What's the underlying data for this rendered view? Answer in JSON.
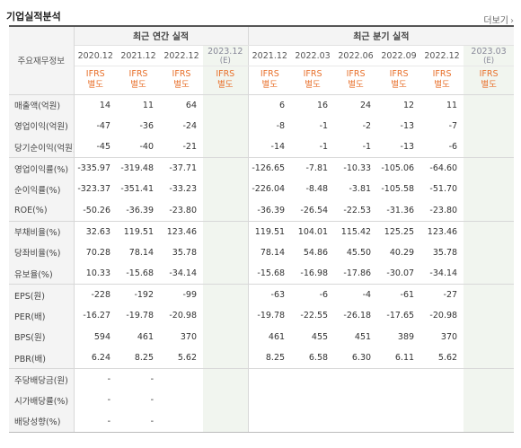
{
  "section": {
    "title": "기업실적분석",
    "more_label": "더보기"
  },
  "table": {
    "row_header_label": "주요재무정보",
    "group_annual": "최근 연간 실적",
    "group_quarter": "최근 분기 실적",
    "estimate_label": "(E)",
    "standard": [
      "IFRS",
      "별도"
    ],
    "annual_periods": [
      "2020.12",
      "2021.12",
      "2022.12",
      "2023.12"
    ],
    "quarter_periods": [
      "2021.12",
      "2022.03",
      "2022.06",
      "2022.09",
      "2022.12",
      "2023.03"
    ],
    "rows": [
      {
        "label": "매출액(억원)",
        "values": [
          "14",
          "11",
          "64",
          "",
          "6",
          "16",
          "24",
          "12",
          "11",
          ""
        ]
      },
      {
        "label": "영업이익(억원)",
        "values": [
          "-47",
          "-36",
          "-24",
          "",
          "-8",
          "-1",
          "-2",
          "-13",
          "-7",
          ""
        ]
      },
      {
        "label": "당기순이익(억원)",
        "values": [
          "-45",
          "-40",
          "-21",
          "",
          "-14",
          "-1",
          "-1",
          "-13",
          "-6",
          ""
        ]
      },
      {
        "label": "영업이익률(%)",
        "values": [
          "-335.97",
          "-319.48",
          "-37.71",
          "",
          "-126.65",
          "-7.81",
          "-10.33",
          "-105.06",
          "-64.60",
          ""
        ]
      },
      {
        "label": "순이익률(%)",
        "values": [
          "-323.37",
          "-351.41",
          "-33.23",
          "",
          "-226.04",
          "-8.48",
          "-3.81",
          "-105.58",
          "-51.70",
          ""
        ]
      },
      {
        "label": "ROE(%)",
        "values": [
          "-50.26",
          "-36.39",
          "-23.80",
          "",
          "-36.39",
          "-26.54",
          "-22.53",
          "-31.36",
          "-23.80",
          ""
        ]
      },
      {
        "label": "부채비율(%)",
        "values": [
          "32.63",
          "119.51",
          "123.46",
          "",
          "119.51",
          "104.01",
          "115.42",
          "125.25",
          "123.46",
          ""
        ]
      },
      {
        "label": "당좌비율(%)",
        "values": [
          "70.28",
          "78.14",
          "35.78",
          "",
          "78.14",
          "54.86",
          "45.50",
          "40.29",
          "35.78",
          ""
        ]
      },
      {
        "label": "유보율(%)",
        "values": [
          "10.33",
          "-15.68",
          "-34.14",
          "",
          "-15.68",
          "-16.98",
          "-17.86",
          "-30.07",
          "-34.14",
          ""
        ]
      },
      {
        "label": "EPS(원)",
        "values": [
          "-228",
          "-192",
          "-99",
          "",
          "-63",
          "-6",
          "-4",
          "-61",
          "-27",
          ""
        ]
      },
      {
        "label": "PER(배)",
        "values": [
          "-16.27",
          "-19.78",
          "-20.98",
          "",
          "-19.78",
          "-22.55",
          "-26.18",
          "-17.65",
          "-20.98",
          ""
        ]
      },
      {
        "label": "BPS(원)",
        "values": [
          "594",
          "461",
          "370",
          "",
          "461",
          "455",
          "451",
          "389",
          "370",
          ""
        ]
      },
      {
        "label": "PBR(배)",
        "values": [
          "6.24",
          "8.25",
          "5.62",
          "",
          "8.25",
          "6.58",
          "6.30",
          "6.11",
          "5.62",
          ""
        ]
      },
      {
        "label": "주당배당금(원)",
        "values": [
          "-",
          "-",
          "",
          "",
          "",
          "",
          "",
          "",
          "",
          ""
        ]
      },
      {
        "label": "시가배당률(%)",
        "values": [
          "-",
          "-",
          "",
          "",
          "",
          "",
          "",
          "",
          "",
          ""
        ]
      },
      {
        "label": "배당성향(%)",
        "values": [
          "-",
          "-",
          "",
          "",
          "",
          "",
          "",
          "",
          "",
          ""
        ]
      }
    ]
  }
}
